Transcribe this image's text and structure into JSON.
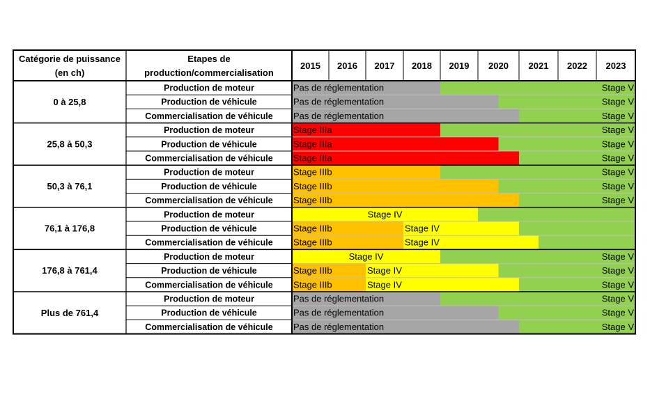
{
  "chart_data": {
    "type": "table",
    "header": {
      "category_label": [
        "Catégorie de puissance",
        "(en ch)"
      ],
      "stage_label": [
        "Etapes de",
        "production/commercialisation"
      ]
    },
    "years": [
      "2015",
      "2016",
      "2017",
      "2018",
      "2019",
      "2020",
      "2021",
      "2022",
      "2023"
    ],
    "timeline_start": 2015,
    "timeline_end": 2024,
    "colors": {
      "none": "#a6a6a6",
      "IIIa": "#ff0000",
      "IIIb": "#ffc000",
      "IV": "#ffff00",
      "V": "#92d050"
    },
    "groups": [
      {
        "name": "0 à 25,8",
        "rows": [
          {
            "stage": "Production de moteur",
            "segments": [
              {
                "start": 2015,
                "end": 2019,
                "label": "Pas de réglementation",
                "color_key": "none",
                "align": "left"
              },
              {
                "start": 2019,
                "end": 2024,
                "label": "Stage V",
                "color_key": "V",
                "align": "right"
              }
            ]
          },
          {
            "stage": "Production de véhicule",
            "segments": [
              {
                "start": 2015,
                "end": 2020.5,
                "label": "Pas de réglementation",
                "color_key": "none",
                "align": "left"
              },
              {
                "start": 2020.5,
                "end": 2024,
                "label": "Stage V",
                "color_key": "V",
                "align": "right"
              }
            ]
          },
          {
            "stage": "Commercialisation de véhicule",
            "segments": [
              {
                "start": 2015,
                "end": 2021,
                "label": "Pas de réglementation",
                "color_key": "none",
                "align": "left"
              },
              {
                "start": 2021,
                "end": 2024,
                "label": "Stage V",
                "color_key": "V",
                "align": "right"
              }
            ]
          }
        ]
      },
      {
        "name": "25,8 à 50,3",
        "rows": [
          {
            "stage": "Production de moteur",
            "segments": [
              {
                "start": 2015,
                "end": 2019,
                "label": "Stage IIIa",
                "color_key": "IIIa",
                "align": "left"
              },
              {
                "start": 2019,
                "end": 2024,
                "label": "Stage V",
                "color_key": "V",
                "align": "right"
              }
            ]
          },
          {
            "stage": "Production de véhicule",
            "segments": [
              {
                "start": 2015,
                "end": 2020.5,
                "label": "Stage IIIa",
                "color_key": "IIIa",
                "align": "left"
              },
              {
                "start": 2020.5,
                "end": 2024,
                "label": "Stage V",
                "color_key": "V",
                "align": "right"
              }
            ]
          },
          {
            "stage": "Commercialisation de véhicule",
            "segments": [
              {
                "start": 2015,
                "end": 2021,
                "label": "Stage IIIa",
                "color_key": "IIIa",
                "align": "left"
              },
              {
                "start": 2021,
                "end": 2024,
                "label": "Stage V",
                "color_key": "V",
                "align": "right"
              }
            ]
          }
        ]
      },
      {
        "name": "50,3 à 76,1",
        "rows": [
          {
            "stage": "Production de moteur",
            "segments": [
              {
                "start": 2015,
                "end": 2019,
                "label": "Stage IIIb",
                "color_key": "IIIb",
                "align": "left"
              },
              {
                "start": 2019,
                "end": 2024,
                "label": "Stage V",
                "color_key": "V",
                "align": "right"
              }
            ]
          },
          {
            "stage": "Production de véhicule",
            "segments": [
              {
                "start": 2015,
                "end": 2020.5,
                "label": "Stage IIIb",
                "color_key": "IIIb",
                "align": "left"
              },
              {
                "start": 2020.5,
                "end": 2024,
                "label": "Stage V",
                "color_key": "V",
                "align": "right"
              }
            ]
          },
          {
            "stage": "Commercialisation de véhicule",
            "segments": [
              {
                "start": 2015,
                "end": 2021,
                "label": "Stage IIIb",
                "color_key": "IIIb",
                "align": "left"
              },
              {
                "start": 2021,
                "end": 2024,
                "label": "Stage V",
                "color_key": "V",
                "align": "right"
              }
            ]
          }
        ]
      },
      {
        "name": "76,1 à 176,8",
        "rows": [
          {
            "stage": "Production de moteur",
            "segments": [
              {
                "start": 2015,
                "end": 2020,
                "label": "Stage IV",
                "color_key": "IV",
                "align": "center"
              },
              {
                "start": 2020,
                "end": 2024,
                "label": "",
                "color_key": "V",
                "align": "right"
              }
            ]
          },
          {
            "stage": "Production de véhicule",
            "segments": [
              {
                "start": 2015,
                "end": 2018,
                "label": "Stage IIIb",
                "color_key": "IIIb",
                "align": "left"
              },
              {
                "start": 2018,
                "end": 2021,
                "label": "Stage IV",
                "color_key": "IV",
                "align": "left"
              },
              {
                "start": 2021,
                "end": 2024,
                "label": "",
                "color_key": "V",
                "align": "right"
              }
            ]
          },
          {
            "stage": "Commercialisation de véhicule",
            "segments": [
              {
                "start": 2015,
                "end": 2018,
                "label": "Stage IIIb",
                "color_key": "IIIb",
                "align": "left"
              },
              {
                "start": 2018,
                "end": 2021.5,
                "label": "Stage IV",
                "color_key": "IV",
                "align": "left"
              },
              {
                "start": 2021.5,
                "end": 2024,
                "label": "",
                "color_key": "V",
                "align": "right"
              }
            ]
          }
        ]
      },
      {
        "name": "176,8 à 761,4",
        "rows": [
          {
            "stage": "Production de moteur",
            "segments": [
              {
                "start": 2015,
                "end": 2019,
                "label": "Stage IV",
                "color_key": "IV",
                "align": "center"
              },
              {
                "start": 2019,
                "end": 2024,
                "label": "Stage V",
                "color_key": "V",
                "align": "right"
              }
            ]
          },
          {
            "stage": "Production de véhicule",
            "segments": [
              {
                "start": 2015,
                "end": 2017,
                "label": "Stage IIIb",
                "color_key": "IIIb",
                "align": "left"
              },
              {
                "start": 2017,
                "end": 2020.5,
                "label": "Stage IV",
                "color_key": "IV",
                "align": "left"
              },
              {
                "start": 2020.5,
                "end": 2024,
                "label": "Stage V",
                "color_key": "V",
                "align": "right"
              }
            ]
          },
          {
            "stage": "Commercialisation de véhicule",
            "segments": [
              {
                "start": 2015,
                "end": 2017,
                "label": "Stage IIIb",
                "color_key": "IIIb",
                "align": "left"
              },
              {
                "start": 2017,
                "end": 2021,
                "label": "Stage IV",
                "color_key": "IV",
                "align": "left"
              },
              {
                "start": 2021,
                "end": 2024,
                "label": "Stage V",
                "color_key": "V",
                "align": "right"
              }
            ]
          }
        ]
      },
      {
        "name": "Plus de 761,4",
        "rows": [
          {
            "stage": "Production de moteur",
            "segments": [
              {
                "start": 2015,
                "end": 2019,
                "label": "Pas de réglementation",
                "color_key": "none",
                "align": "left"
              },
              {
                "start": 2019,
                "end": 2024,
                "label": "Stage V",
                "color_key": "V",
                "align": "right"
              }
            ]
          },
          {
            "stage": "Production de véhicule",
            "segments": [
              {
                "start": 2015,
                "end": 2020.5,
                "label": "Pas de réglementation",
                "color_key": "none",
                "align": "left"
              },
              {
                "start": 2020.5,
                "end": 2024,
                "label": "Stage V",
                "color_key": "V",
                "align": "right"
              }
            ]
          },
          {
            "stage": "Commercialisation de véhicule",
            "segments": [
              {
                "start": 2015,
                "end": 2021,
                "label": "Pas de réglementation",
                "color_key": "none",
                "align": "left"
              },
              {
                "start": 2021,
                "end": 2024,
                "label": "Stage V",
                "color_key": "V",
                "align": "right"
              }
            ]
          }
        ]
      }
    ]
  }
}
